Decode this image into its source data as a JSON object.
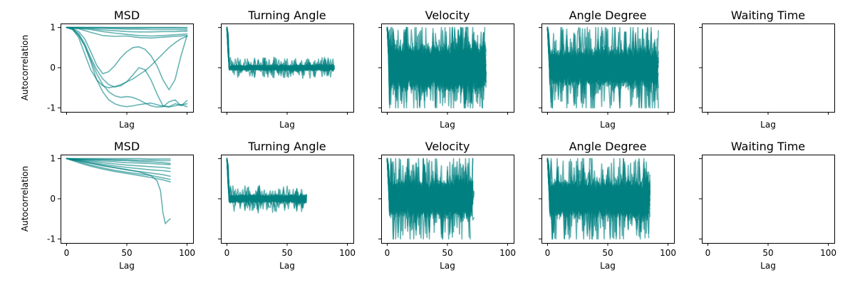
{
  "chart_data": {
    "type": "line",
    "layout": "grid 2x5, shared x and y axes",
    "line_color": "#008080",
    "line_alpha": 0.6,
    "xlim": [
      -5,
      105
    ],
    "ylim": [
      -1.1,
      1.1
    ],
    "x_ticks": [
      0,
      50,
      100
    ],
    "y_ticks": [
      -1,
      0,
      1
    ],
    "ylabel": "Autocorrelation",
    "xlabel": "Lag",
    "rows": [
      {
        "ylabel": "Autocorrelation",
        "x_max_lag": 100,
        "panels": [
          {
            "title": "MSD",
            "xlabel": "Lag",
            "kind": "msd",
            "series": [
              {
                "x": [
                  0,
                  10,
                  20,
                  30,
                  40,
                  50,
                  60,
                  70,
                  80,
                  90,
                  100
                ],
                "y": [
                  1,
                  1,
                  1,
                  1,
                  1,
                  1,
                  1,
                  1,
                  1,
                  1,
                  1
                ]
              },
              {
                "x": [
                  0,
                  10,
                  20,
                  30,
                  40,
                  50,
                  60,
                  70,
                  80,
                  90,
                  100
                ],
                "y": [
                  1,
                  1,
                  1,
                  1,
                  0.99,
                  0.99,
                  0.99,
                  0.99,
                  0.99,
                  0.99,
                  0.98
                ]
              },
              {
                "x": [
                  0,
                  10,
                  20,
                  30,
                  40,
                  50,
                  60,
                  70,
                  80,
                  90,
                  100
                ],
                "y": [
                  1,
                  1,
                  0.99,
                  0.98,
                  0.97,
                  0.96,
                  0.96,
                  0.95,
                  0.95,
                  0.95,
                  0.94
                ]
              },
              {
                "x": [
                  0,
                  10,
                  20,
                  30,
                  40,
                  50,
                  60,
                  70,
                  80,
                  90,
                  100
                ],
                "y": [
                  1,
                  0.99,
                  0.97,
                  0.94,
                  0.92,
                  0.9,
                  0.89,
                  0.89,
                  0.9,
                  0.9,
                  0.91
                ]
              },
              {
                "x": [
                  0,
                  10,
                  20,
                  30,
                  40,
                  50,
                  60,
                  70,
                  80,
                  90,
                  100
                ],
                "y": [
                  1,
                  0.98,
                  0.95,
                  0.9,
                  0.86,
                  0.83,
                  0.8,
                  0.79,
                  0.8,
                  0.82,
                  0.84
                ]
              },
              {
                "x": [
                  0,
                  10,
                  20,
                  30,
                  40,
                  50,
                  60,
                  70,
                  80,
                  90,
                  100
                ],
                "y": [
                  1,
                  0.97,
                  0.88,
                  0.8,
                  0.78,
                  0.79,
                  0.75,
                  0.74,
                  0.76,
                  0.78,
                  0.8
                ]
              },
              {
                "x": [
                  0,
                  5,
                  10,
                  15,
                  20,
                  25,
                  30,
                  35,
                  40,
                  45,
                  50,
                  55,
                  60,
                  65,
                  70,
                  75,
                  80,
                  85,
                  90,
                  95,
                  100
                ],
                "y": [
                  1,
                  0.98,
                  0.9,
                  0.72,
                  0.4,
                  0.06,
                  -0.15,
                  -0.1,
                  0.05,
                  0.25,
                  0.4,
                  0.5,
                  0.52,
                  0.46,
                  0.3,
                  0.05,
                  -0.3,
                  -0.55,
                  -0.3,
                  0.3,
                  0.8
                ]
              },
              {
                "x": [
                  0,
                  5,
                  10,
                  15,
                  20,
                  25,
                  30,
                  35,
                  40,
                  45,
                  50,
                  55,
                  60,
                  65,
                  70,
                  75,
                  80,
                  85,
                  90,
                  95,
                  100
                ],
                "y": [
                  1,
                  0.97,
                  0.85,
                  0.6,
                  0.25,
                  -0.05,
                  -0.28,
                  -0.42,
                  -0.48,
                  -0.45,
                  -0.35,
                  -0.18,
                  0,
                  -0.05,
                  -0.3,
                  -0.65,
                  -0.95,
                  -0.97,
                  -0.9,
                  -0.93,
                  -0.9
                ]
              },
              {
                "x": [
                  0,
                  5,
                  10,
                  15,
                  20,
                  25,
                  30,
                  35,
                  40,
                  45,
                  50,
                  55,
                  60,
                  65,
                  70,
                  75,
                  80,
                  85,
                  90,
                  95,
                  100
                ],
                "y": [
                  1,
                  0.96,
                  0.8,
                  0.55,
                  0.2,
                  -0.15,
                  -0.42,
                  -0.6,
                  -0.7,
                  -0.74,
                  -0.72,
                  -0.74,
                  -0.8,
                  -0.88,
                  -0.95,
                  -0.98,
                  -0.97,
                  -0.85,
                  -0.8,
                  -0.95,
                  -0.82
                ]
              },
              {
                "x": [
                  0,
                  5,
                  10,
                  15,
                  20,
                  25,
                  30,
                  35,
                  40,
                  45,
                  50,
                  55,
                  60,
                  65,
                  70,
                  75,
                  80,
                  85,
                  90,
                  95,
                  100
                ],
                "y": [
                  1,
                  0.95,
                  0.75,
                  0.35,
                  -0.05,
                  -0.3,
                  -0.45,
                  -0.5,
                  -0.47,
                  -0.42,
                  -0.35,
                  -0.28,
                  -0.18,
                  -0.08,
                  0.05,
                  0.2,
                  0.35,
                  0.5,
                  0.62,
                  0.72,
                  0.78
                ]
              },
              {
                "x": [
                  0,
                  5,
                  10,
                  15,
                  20,
                  25,
                  30,
                  35,
                  40,
                  45,
                  50,
                  55,
                  60,
                  65,
                  70,
                  75,
                  80,
                  85,
                  90,
                  95,
                  100
                ],
                "y": [
                  1,
                  0.96,
                  0.82,
                  0.55,
                  0.15,
                  -0.3,
                  -0.6,
                  -0.8,
                  -0.9,
                  -0.95,
                  -0.97,
                  -0.95,
                  -0.92,
                  -0.9,
                  -0.88,
                  -0.92,
                  -0.96,
                  -0.98,
                  -0.95,
                  -0.92,
                  -0.97
                ]
              }
            ]
          },
          {
            "title": "Turning Angle",
            "xlabel": "Lag",
            "kind": "noise",
            "n_series": 30,
            "amplitude": 0.07,
            "spike_amplitude": 0.22,
            "max_lag": 100,
            "seed": 11
          },
          {
            "title": "Velocity",
            "xlabel": "Lag",
            "kind": "noise",
            "n_series": 55,
            "amplitude": 0.55,
            "spike_amplitude": 1.0,
            "max_lag": 100,
            "seed": 23
          },
          {
            "title": "Angle Degree",
            "xlabel": "Lag",
            "kind": "noise",
            "n_series": 45,
            "amplitude": 0.45,
            "spike_amplitude": 1.0,
            "max_lag": 100,
            "seed": 37
          },
          {
            "title": "Waiting Time",
            "xlabel": "Lag",
            "kind": "empty"
          }
        ]
      },
      {
        "ylabel": "Autocorrelation",
        "x_max_lag": 86,
        "panels": [
          {
            "title": "MSD",
            "xlabel": "Lag",
            "kind": "msd",
            "series": [
              {
                "x": [
                  0,
                  10,
                  20,
                  30,
                  40,
                  50,
                  60,
                  70,
                  80,
                  86
                ],
                "y": [
                  1,
                  1,
                  1,
                  1,
                  1,
                  1,
                  1,
                  0.99,
                  0.99,
                  0.99
                ]
              },
              {
                "x": [
                  0,
                  10,
                  20,
                  30,
                  40,
                  50,
                  60,
                  70,
                  80,
                  86
                ],
                "y": [
                  1,
                  0.99,
                  0.99,
                  0.98,
                  0.97,
                  0.97,
                  0.96,
                  0.96,
                  0.95,
                  0.95
                ]
              },
              {
                "x": [
                  0,
                  10,
                  20,
                  30,
                  40,
                  50,
                  60,
                  70,
                  80,
                  86
                ],
                "y": [
                  1,
                  0.98,
                  0.96,
                  0.94,
                  0.92,
                  0.9,
                  0.89,
                  0.88,
                  0.86,
                  0.85
                ]
              },
              {
                "x": [
                  0,
                  10,
                  20,
                  30,
                  40,
                  50,
                  60,
                  70,
                  80,
                  86
                ],
                "y": [
                  1,
                  0.97,
                  0.94,
                  0.9,
                  0.87,
                  0.84,
                  0.82,
                  0.8,
                  0.78,
                  0.76
                ]
              },
              {
                "x": [
                  0,
                  10,
                  20,
                  30,
                  40,
                  50,
                  60,
                  70,
                  80,
                  86
                ],
                "y": [
                  1,
                  0.96,
                  0.91,
                  0.86,
                  0.82,
                  0.78,
                  0.75,
                  0.72,
                  0.7,
                  0.68
                ]
              },
              {
                "x": [
                  0,
                  10,
                  20,
                  30,
                  40,
                  50,
                  60,
                  70,
                  80,
                  86
                ],
                "y": [
                  1,
                  0.94,
                  0.88,
                  0.82,
                  0.77,
                  0.72,
                  0.68,
                  0.64,
                  0.6,
                  0.56
                ]
              },
              {
                "x": [
                  0,
                  10,
                  20,
                  30,
                  40,
                  50,
                  60,
                  70,
                  80,
                  86
                ],
                "y": [
                  1,
                  0.92,
                  0.84,
                  0.77,
                  0.71,
                  0.66,
                  0.62,
                  0.58,
                  0.52,
                  0.48
                ]
              },
              {
                "x": [
                  0,
                  10,
                  20,
                  30,
                  40,
                  50,
                  60,
                  70,
                  80,
                  86
                ],
                "y": [
                  1,
                  0.9,
                  0.81,
                  0.74,
                  0.68,
                  0.63,
                  0.58,
                  0.53,
                  0.47,
                  0.42
                ]
              },
              {
                "x": [
                  0,
                  10,
                  20,
                  30,
                  40,
                  50,
                  60,
                  70,
                  80,
                  86
                ],
                "y": [
                  1,
                  0.99,
                  0.98,
                  0.97,
                  0.96,
                  0.95,
                  0.93,
                  0.92,
                  0.9,
                  0.88
                ]
              },
              {
                "x": [
                  0,
                  10,
                  20,
                  30,
                  40,
                  50,
                  60,
                  70,
                  75,
                  78,
                  80,
                  82,
                  84,
                  86
                ],
                "y": [
                  1,
                  0.95,
                  0.89,
                  0.83,
                  0.78,
                  0.73,
                  0.67,
                  0.58,
                  0.45,
                  0.2,
                  -0.35,
                  -0.62,
                  -0.55,
                  -0.5
                ]
              }
            ]
          },
          {
            "title": "Turning Angle",
            "xlabel": "Lag",
            "kind": "noise",
            "n_series": 30,
            "amplitude": 0.1,
            "spike_amplitude": 0.3,
            "max_lag": 86,
            "seed": 51
          },
          {
            "title": "Velocity",
            "xlabel": "Lag",
            "kind": "noise",
            "n_series": 50,
            "amplitude": 0.45,
            "spike_amplitude": 1.0,
            "max_lag": 86,
            "seed": 67
          },
          {
            "title": "Angle Degree",
            "xlabel": "Lag",
            "kind": "noise",
            "n_series": 45,
            "amplitude": 0.45,
            "spike_amplitude": 1.0,
            "max_lag": 86,
            "seed": 79
          },
          {
            "title": "Waiting Time",
            "xlabel": "Lag",
            "kind": "empty"
          }
        ]
      }
    ]
  }
}
